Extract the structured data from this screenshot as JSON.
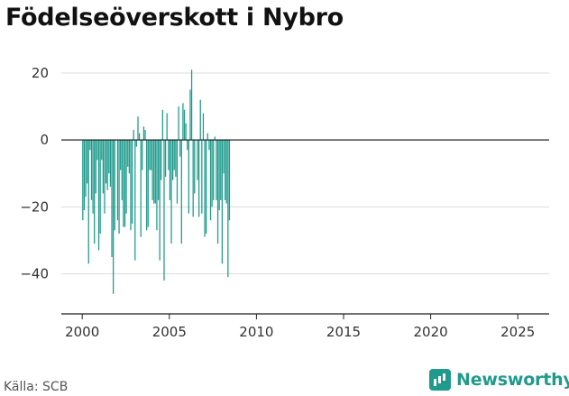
{
  "title": "Födelseöverskott i Nybro",
  "source": "Källa: SCB",
  "brand": {
    "name": "Newsworthy",
    "icon": "bar-chart-icon"
  },
  "chart_data": {
    "type": "bar",
    "title": "Födelseöverskott i Nybro",
    "xlabel": "",
    "ylabel": "",
    "color": "#1f9a8c",
    "ylim": [
      -52,
      27
    ],
    "xlim": [
      1998.8,
      2026.8
    ],
    "yticks": [
      20,
      0,
      -20,
      -40
    ],
    "xticks": [
      2000,
      2005,
      2010,
      2015,
      2020,
      2025
    ],
    "grid": true,
    "start": "2000-01",
    "frequency": "monthly",
    "values": [
      -24,
      -21,
      -17,
      -13,
      -37,
      -3,
      -18,
      -22,
      -31,
      -16,
      -6,
      -33,
      -28,
      -6,
      -16,
      -22,
      -13,
      -15,
      -10,
      -14,
      -35,
      -46,
      -27,
      0,
      -24,
      -28,
      -9,
      -18,
      -26,
      -26,
      -22,
      -8,
      -10,
      -27,
      -25,
      3,
      -36,
      -2,
      7,
      2,
      -29,
      -9,
      4,
      3,
      -27,
      -26,
      -9,
      -9,
      -18,
      -19,
      -19,
      -27,
      -18,
      -36,
      -12,
      9,
      -42,
      -11,
      8,
      -9,
      -18,
      -31,
      -12,
      -9,
      -11,
      -19,
      10,
      -5,
      -31,
      11,
      9,
      5,
      -3,
      -22,
      15,
      21,
      -23,
      -16,
      0,
      -12,
      -23,
      12,
      -22,
      8,
      -29,
      -28,
      2,
      -3,
      -24,
      -20,
      -18,
      1,
      -18,
      -31,
      -21,
      -18,
      -37,
      -10,
      -18,
      -19,
      -41,
      -24
    ]
  }
}
